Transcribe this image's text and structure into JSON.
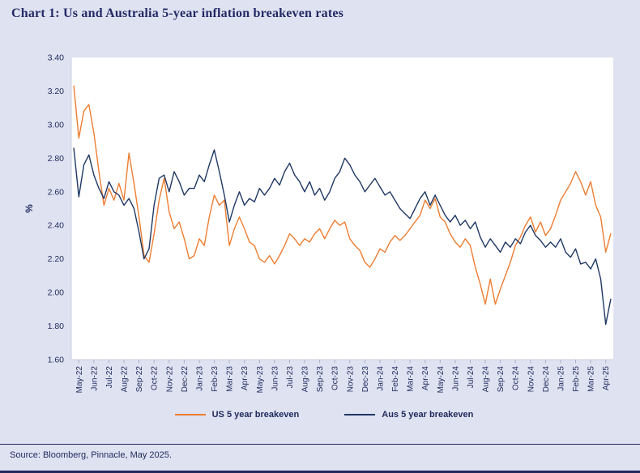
{
  "page": {
    "title": "Chart 1: Us and Australia 5-year inflation breakeven rates",
    "source": "Source: Bloomberg, Pinnacle, May 2025."
  },
  "colors": {
    "background": "#dfe2f0",
    "plot_bg": "#ffffff",
    "text_navy": "#1f2a5e",
    "axis_line": "#cdd2e0",
    "tick_mark": "#aab1c8",
    "us_line": "#ED7D31",
    "aus_line": "#1F3864"
  },
  "chart_data": {
    "type": "line",
    "title": "Chart 1: Us and Australia 5-year inflation breakeven rates",
    "xlabel": "",
    "ylabel": "%",
    "ylim": [
      1.6,
      3.4
    ],
    "ytick_step": 0.2,
    "grid": false,
    "legend_position": "bottom",
    "points_per_category": 3,
    "categories": [
      "May-22",
      "Jun-22",
      "Jul-22",
      "Aug-22",
      "Sep-22",
      "Oct-22",
      "Nov-22",
      "Dec-22",
      "Jan-23",
      "Feb-23",
      "Mar-23",
      "Apr-23",
      "May-23",
      "Jun-23",
      "Jul-23",
      "Aug-23",
      "Sep-23",
      "Oct-23",
      "Nov-23",
      "Dec-23",
      "Jan-24",
      "Feb-24",
      "Mar-24",
      "Apr-24",
      "May-24",
      "Jun-24",
      "Jul-24",
      "Aug-24",
      "Sep-24",
      "Oct-24",
      "Nov-24",
      "Dec-24",
      "Jan-25",
      "Feb-25",
      "Mar-25",
      "Apr-25"
    ],
    "series": [
      {
        "name": "US 5 year breakeven",
        "color": "#ED7D31",
        "values": [
          3.23,
          2.92,
          3.08,
          3.12,
          2.95,
          2.72,
          2.52,
          2.62,
          2.55,
          2.65,
          2.55,
          2.83,
          2.65,
          2.45,
          2.22,
          2.18,
          2.35,
          2.55,
          2.68,
          2.48,
          2.38,
          2.42,
          2.32,
          2.2,
          2.22,
          2.32,
          2.28,
          2.45,
          2.58,
          2.52,
          2.55,
          2.28,
          2.38,
          2.45,
          2.38,
          2.3,
          2.28,
          2.2,
          2.18,
          2.22,
          2.17,
          2.22,
          2.28,
          2.35,
          2.32,
          2.28,
          2.32,
          2.3,
          2.35,
          2.38,
          2.32,
          2.38,
          2.43,
          2.4,
          2.42,
          2.32,
          2.28,
          2.25,
          2.18,
          2.15,
          2.2,
          2.26,
          2.24,
          2.3,
          2.34,
          2.31,
          2.34,
          2.38,
          2.42,
          2.46,
          2.55,
          2.5,
          2.56,
          2.45,
          2.42,
          2.35,
          2.3,
          2.27,
          2.32,
          2.28,
          2.15,
          2.05,
          1.93,
          2.08,
          1.93,
          2.02,
          2.1,
          2.18,
          2.28,
          2.33,
          2.4,
          2.45,
          2.36,
          2.42,
          2.34,
          2.38,
          2.46,
          2.55,
          2.6,
          2.65,
          2.72,
          2.66,
          2.58,
          2.66,
          2.52,
          2.45,
          2.24,
          2.35
        ]
      },
      {
        "name": "Aus 5 year breakeven",
        "color": "#1F3864",
        "values": [
          2.86,
          2.57,
          2.76,
          2.82,
          2.7,
          2.62,
          2.56,
          2.66,
          2.6,
          2.58,
          2.52,
          2.56,
          2.5,
          2.36,
          2.2,
          2.26,
          2.52,
          2.68,
          2.7,
          2.6,
          2.72,
          2.66,
          2.58,
          2.62,
          2.62,
          2.7,
          2.66,
          2.76,
          2.85,
          2.72,
          2.58,
          2.42,
          2.52,
          2.6,
          2.52,
          2.56,
          2.54,
          2.62,
          2.58,
          2.62,
          2.68,
          2.64,
          2.72,
          2.77,
          2.7,
          2.66,
          2.6,
          2.66,
          2.58,
          2.62,
          2.55,
          2.6,
          2.68,
          2.72,
          2.8,
          2.76,
          2.7,
          2.66,
          2.6,
          2.64,
          2.68,
          2.63,
          2.58,
          2.6,
          2.55,
          2.5,
          2.47,
          2.44,
          2.5,
          2.56,
          2.6,
          2.52,
          2.58,
          2.52,
          2.46,
          2.42,
          2.46,
          2.4,
          2.43,
          2.38,
          2.42,
          2.33,
          2.27,
          2.32,
          2.28,
          2.24,
          2.3,
          2.27,
          2.32,
          2.29,
          2.36,
          2.4,
          2.34,
          2.31,
          2.27,
          2.3,
          2.27,
          2.32,
          2.24,
          2.21,
          2.26,
          2.17,
          2.18,
          2.14,
          2.2,
          2.08,
          1.81,
          1.96
        ]
      }
    ]
  }
}
